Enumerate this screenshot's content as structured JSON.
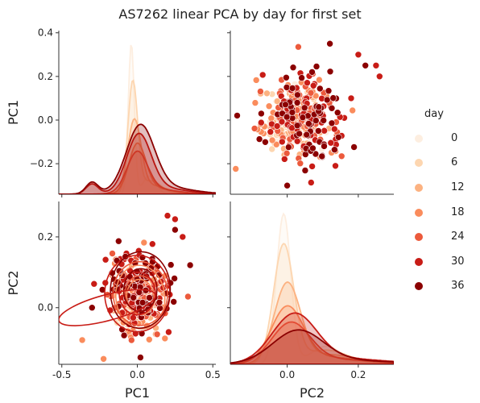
{
  "figure": {
    "title": "AS7262 linear PCA by day for first set"
  },
  "legend": {
    "title": "day",
    "entries": [
      {
        "label": "0",
        "color": "#fdeee0"
      },
      {
        "label": "6",
        "color": "#fdd6b0"
      },
      {
        "label": "12",
        "color": "#fcb281"
      },
      {
        "label": "18",
        "color": "#fa8c5c"
      },
      {
        "label": "24",
        "color": "#ec5a3c"
      },
      {
        "label": "30",
        "color": "#c81c16"
      },
      {
        "label": "36",
        "color": "#8b0000"
      }
    ]
  },
  "chart_data": {
    "type": "pairplot",
    "variables": [
      "PC1",
      "PC2"
    ],
    "hue": "day",
    "hue_levels": [
      0,
      6,
      12,
      18,
      24,
      30,
      36
    ],
    "palette": "Reds",
    "diagonal": "kde",
    "lower_triangle": "kde + scatter",
    "upper_triangle": "scatter",
    "axes": {
      "PC1": {
        "label": "PC1",
        "range": [
          -0.52,
          0.52
        ],
        "ticks": [
          -0.5,
          0.0,
          0.5
        ],
        "tick_labels": [
          "-0.5",
          "0.0",
          "0.5"
        ],
        "y_range": [
          -0.34,
          0.41
        ],
        "y_ticks": [
          -0.2,
          0.0,
          0.2,
          0.4
        ],
        "y_tick_labels": [
          "−0.2",
          "0.0",
          "0.2",
          "0.4"
        ]
      },
      "PC2": {
        "label": "PC2",
        "range": [
          -0.16,
          0.3
        ],
        "ticks": [
          0.0,
          0.2
        ],
        "tick_labels": [
          "0.0",
          "0.2"
        ],
        "y_range": [
          -0.16,
          0.3
        ],
        "y_ticks": [
          0.0,
          0.2
        ],
        "y_tick_labels": [
          "0.0",
          "0.2"
        ]
      }
    },
    "kde_peaks_estimate": {
      "PC1": [
        {
          "day": 0,
          "center": -0.04,
          "peak_height": 0.95
        },
        {
          "day": 6,
          "center": -0.03,
          "peak_height": 0.7
        },
        {
          "day": 12,
          "center": -0.02,
          "peak_height": 0.45
        },
        {
          "day": 18,
          "center": 0.0,
          "peak_height": 0.3
        },
        {
          "day": 24,
          "center": 0.0,
          "peak_height": 0.25
        },
        {
          "day": 30,
          "center": 0.01,
          "peak_height": 0.35
        },
        {
          "day": 36,
          "center": 0.02,
          "peak_height": 0.4
        }
      ],
      "PC2": [
        {
          "day": 0,
          "center": -0.01,
          "peak_height": 0.95
        },
        {
          "day": 6,
          "center": -0.01,
          "peak_height": 0.75
        },
        {
          "day": 12,
          "center": 0.0,
          "peak_height": 0.5
        },
        {
          "day": 18,
          "center": 0.0,
          "peak_height": 0.35
        },
        {
          "day": 24,
          "center": 0.01,
          "peak_height": 0.25
        },
        {
          "day": 30,
          "center": 0.02,
          "peak_height": 0.3
        },
        {
          "day": 36,
          "center": 0.03,
          "peak_height": 0.2
        }
      ]
    },
    "scatter_cloud_estimate": [
      {
        "day": 0,
        "pc1_mean": -0.03,
        "pc1_sd": 0.05,
        "pc2_mean": 0.01,
        "pc2_sd": 0.03
      },
      {
        "day": 6,
        "pc1_mean": -0.02,
        "pc1_sd": 0.06,
        "pc2_mean": 0.01,
        "pc2_sd": 0.035
      },
      {
        "day": 12,
        "pc1_mean": 0.0,
        "pc1_sd": 0.07,
        "pc2_mean": 0.02,
        "pc2_sd": 0.04
      },
      {
        "day": 18,
        "pc1_mean": 0.02,
        "pc1_sd": 0.09,
        "pc2_mean": 0.03,
        "pc2_sd": 0.05
      },
      {
        "day": 24,
        "pc1_mean": 0.02,
        "pc1_sd": 0.1,
        "pc2_mean": 0.04,
        "pc2_sd": 0.05
      },
      {
        "day": 30,
        "pc1_mean": 0.0,
        "pc1_sd": 0.12,
        "pc2_mean": 0.04,
        "pc2_sd": 0.06
      },
      {
        "day": 36,
        "pc1_mean": 0.02,
        "pc1_sd": 0.11,
        "pc2_mean": 0.05,
        "pc2_sd": 0.06
      }
    ],
    "outliers_estimate": [
      {
        "day": 36,
        "PC1": -0.3,
        "PC2": 0.0
      },
      {
        "day": 30,
        "PC1": 0.2,
        "PC2": 0.26
      },
      {
        "day": 30,
        "PC1": 0.25,
        "PC2": 0.25
      },
      {
        "day": 36,
        "PC1": 0.25,
        "PC2": 0.22
      },
      {
        "day": 30,
        "PC1": 0.3,
        "PC2": 0.2
      },
      {
        "day": 36,
        "PC1": 0.35,
        "PC2": 0.12
      },
      {
        "day": 30,
        "PC1": 0.1,
        "PC2": 0.18
      },
      {
        "day": 36,
        "PC1": 0.22,
        "PC2": 0.07
      }
    ]
  }
}
